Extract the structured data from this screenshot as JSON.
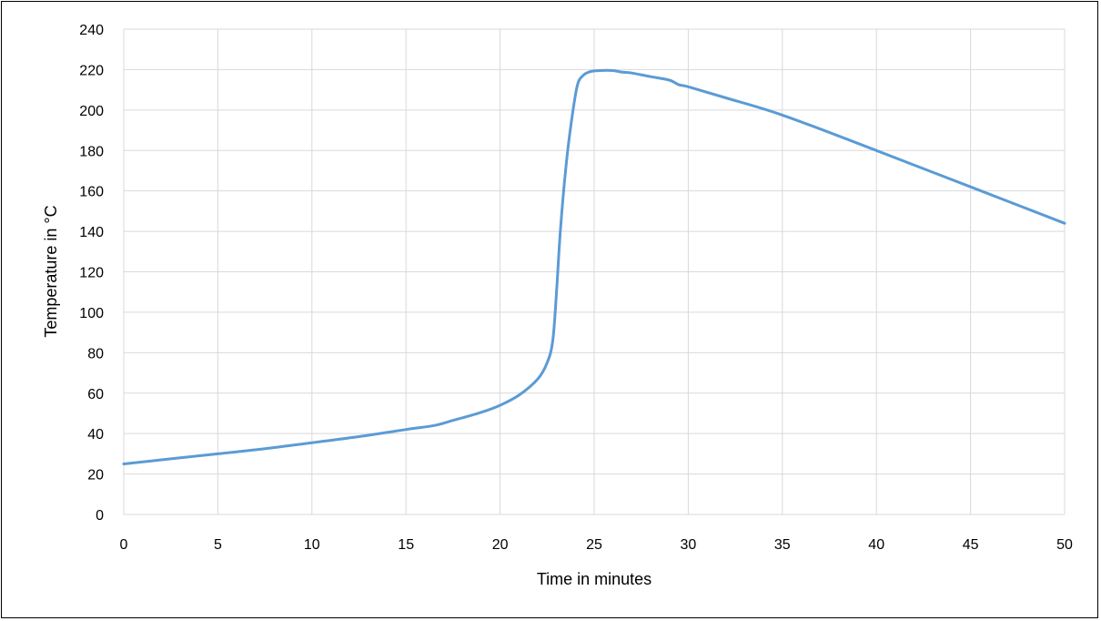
{
  "chart_data": {
    "type": "line",
    "title": "",
    "xlabel": "Time in minutes",
    "ylabel": "Temperature in °C",
    "xlim": [
      0,
      50
    ],
    "ylim": [
      0,
      240
    ],
    "xticks": [
      0,
      5,
      10,
      15,
      20,
      25,
      30,
      35,
      40,
      45,
      50
    ],
    "yticks": [
      0,
      20,
      40,
      60,
      80,
      100,
      120,
      140,
      160,
      180,
      200,
      220,
      240
    ],
    "grid": true,
    "legend": "none",
    "series": [
      {
        "color": "#5b9bd5",
        "x": [
          0,
          2.5,
          5,
          7.5,
          10,
          12.5,
          15,
          16.5,
          17.5,
          19,
          20,
          21,
          22,
          22.5,
          22.8,
          23,
          23.2,
          23.5,
          23.8,
          24.1,
          24.4,
          24.8,
          25.3,
          26,
          26.5,
          27,
          28,
          29,
          29.5,
          30,
          32,
          35,
          40,
          45,
          50
        ],
        "y": [
          25,
          27.5,
          30,
          32.5,
          35.5,
          38.5,
          42,
          44,
          46.5,
          50.5,
          54,
          59,
          67,
          75,
          86,
          110,
          140,
          172,
          195,
          212,
          217,
          219,
          219.5,
          219.5,
          218.7,
          218.3,
          216.5,
          214.8,
          212.5,
          211.5,
          206,
          197.5,
          180,
          162,
          144
        ]
      }
    ]
  }
}
